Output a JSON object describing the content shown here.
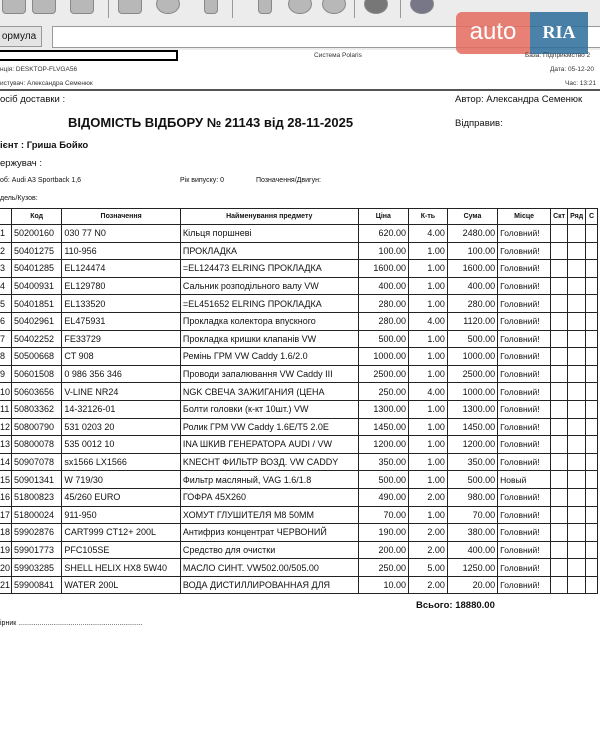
{
  "toolbar": {
    "formula_label": "ормула",
    "formula_value": ""
  },
  "logo": {
    "text": "auto",
    "brand": "RIA"
  },
  "report_header": {
    "system": "Система Polaris",
    "station": "нція: DESKTOP-FLVGA56",
    "user": "истувач: Александра Семенюк",
    "base": "База: Підприємство 2",
    "date": "Дата: 05-12-20",
    "time": "Час: 13:21"
  },
  "document": {
    "delivery": "осіб доставки :",
    "author": "Автор: Александра Семенюк",
    "title": "ВІДОМІСТЬ ВІДБОРУ № 21143 від 28-11-2025",
    "sent_by": "Відправив:",
    "client": "ієнт : Гриша Бойко",
    "recipient": "ержувач :",
    "car": "об: Audi A3 Sportback 1,6",
    "year": "Рік випуску: 0",
    "engine": "Позначення/Двигун:",
    "model": "дель/Кузов:",
    "columns": [
      "",
      "Код",
      "Позначення",
      "Найменування  предмету",
      "Ціна",
      "К-ть",
      "Сума",
      "Місце",
      "Скт",
      "Ряд",
      "С"
    ],
    "rows": [
      [
        "1",
        "50200160",
        "030 77 N0",
        "Кільця поршневі",
        "620.00",
        "4.00",
        "2480.00",
        "Головний!"
      ],
      [
        "2",
        "50401275",
        "110-956",
        "ПРОКЛАДКА",
        "100.00",
        "1.00",
        "100.00",
        "Головний!"
      ],
      [
        "3",
        "50401285",
        "EL124474",
        "=EL124473 ELRING ПРОКЛАДКА",
        "1600.00",
        "1.00",
        "1600.00",
        "Головний!"
      ],
      [
        "4",
        "50400931",
        "EL129780",
        "Сальник розподільного валу VW",
        "400.00",
        "1.00",
        "400.00",
        "Головний!"
      ],
      [
        "5",
        "50401851",
        "EL133520",
        "=EL451652 ELRING ПРОКЛАДКА",
        "280.00",
        "1.00",
        "280.00",
        "Головний!"
      ],
      [
        "6",
        "50402961",
        "EL475931",
        "Прокладка колектора впускного",
        "280.00",
        "4.00",
        "1120.00",
        "Головний!"
      ],
      [
        "7",
        "50402252",
        "FE33729",
        "Прокладка кришки клапанів VW",
        "500.00",
        "1.00",
        "500.00",
        "Головний!"
      ],
      [
        "8",
        "50500668",
        "CT 908",
        "Ремінь ГРМ VW Caddy 1.6/2.0",
        "1000.00",
        "1.00",
        "1000.00",
        "Головний!"
      ],
      [
        "9",
        "50601508",
        "0 986 356 346",
        "Проводи запалювання VW Caddy III",
        "2500.00",
        "1.00",
        "2500.00",
        "Головний!"
      ],
      [
        "10",
        "50603656",
        "V-LINE NR24",
        "NGK СВЕЧА ЗАЖИГАНИЯ (ЦЕНА",
        "250.00",
        "4.00",
        "1000.00",
        "Головний!"
      ],
      [
        "11",
        "50803362",
        "14-32126-01",
        "Болти головки (к-кт 10шт.) VW",
        "1300.00",
        "1.00",
        "1300.00",
        "Головний!"
      ],
      [
        "12",
        "50800790",
        "531 0203 20",
        "Ролик ГРМ VW Caddy 1.6E/T5 2.0E",
        "1450.00",
        "1.00",
        "1450.00",
        "Головний!"
      ],
      [
        "13",
        "50800078",
        "535 0012 10",
        "INA  ШКИВ ГЕНЕРАТОРА AUDI / VW",
        "1200.00",
        "1.00",
        "1200.00",
        "Головний!"
      ],
      [
        "14",
        "50907078",
        "sx1566    LX1566",
        "KNECHT ФИЛЬТР ВОЗД. VW CADDY",
        "350.00",
        "1.00",
        "350.00",
        "Головний!"
      ],
      [
        "15",
        "50901341",
        "W 719/30",
        "Фильтр масляный, VAG 1.6/1.8",
        "500.00",
        "1.00",
        "500.00",
        "Новый"
      ],
      [
        "16",
        "51800823",
        "45/260   EURO",
        "ГОФРА 45X260",
        "490.00",
        "2.00",
        "980.00",
        "Головний!"
      ],
      [
        "17",
        "51800024",
        "911-950",
        "ХОМУТ ГЛУШИТЕЛЯ M8 50MM",
        "70.00",
        "1.00",
        "70.00",
        "Головний!"
      ],
      [
        "18",
        "59902876",
        "CART999 CT12+ 200L",
        "Антифриз концентрат  ЧЕРВОНИЙ",
        "190.00",
        "2.00",
        "380.00",
        "Головний!"
      ],
      [
        "19",
        "59901773",
        "PFC105SE",
        "Средство для очистки",
        "200.00",
        "2.00",
        "400.00",
        "Головний!"
      ],
      [
        "20",
        "59903285",
        "SHELL HELIX HX8 5W40",
        "МАСЛО СИНТ. VW502.00/505.00",
        "250.00",
        "5.00",
        "1250.00",
        "Головний!"
      ],
      [
        "21",
        "59900841",
        "WATER 200L",
        "ВОДА ДИСТИЛЛИРОВАННАЯ ДЛЯ",
        "10.00",
        "2.00",
        "20.00",
        "Головний!"
      ]
    ],
    "total": "Всього: 18880.00",
    "signature": "ірник ................................................................"
  }
}
